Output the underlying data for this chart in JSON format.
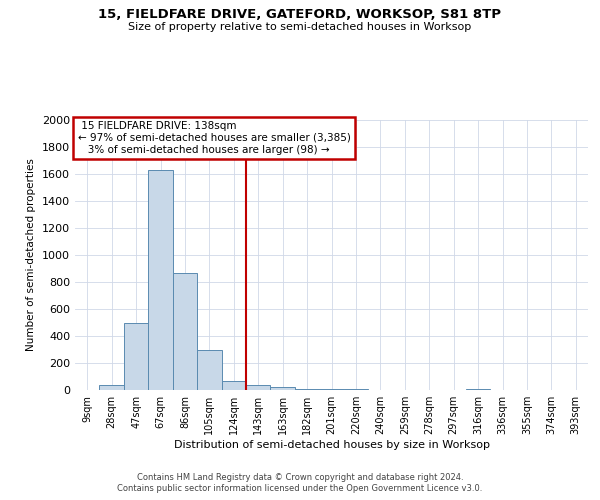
{
  "title": "15, FIELDFARE DRIVE, GATEFORD, WORKSOP, S81 8TP",
  "subtitle": "Size of property relative to semi-detached houses in Worksop",
  "xlabel": "Distribution of semi-detached houses by size in Worksop",
  "ylabel": "Number of semi-detached properties",
  "footer_lines": [
    "Contains HM Land Registry data © Crown copyright and database right 2024.",
    "Contains public sector information licensed under the Open Government Licence v3.0."
  ],
  "bin_labels": [
    "9sqm",
    "28sqm",
    "47sqm",
    "67sqm",
    "86sqm",
    "105sqm",
    "124sqm",
    "143sqm",
    "163sqm",
    "182sqm",
    "201sqm",
    "220sqm",
    "240sqm",
    "259sqm",
    "278sqm",
    "297sqm",
    "316sqm",
    "336sqm",
    "355sqm",
    "374sqm",
    "393sqm"
  ],
  "bin_values": [
    0,
    35,
    500,
    1630,
    870,
    300,
    65,
    40,
    20,
    10,
    5,
    5,
    3,
    2,
    0,
    0,
    10,
    0,
    0,
    0,
    0
  ],
  "bar_color": "#c8d8e8",
  "bar_edge_color": "#5a8ab0",
  "property_label": "15 FIELDFARE DRIVE: 138sqm",
  "pct_smaller": 97,
  "n_smaller": 3385,
  "pct_larger": 3,
  "n_larger": 98,
  "vline_color": "#c00000",
  "annotation_box_color": "#c00000",
  "ylim": [
    0,
    2000
  ],
  "yticks": [
    0,
    200,
    400,
    600,
    800,
    1000,
    1200,
    1400,
    1600,
    1800,
    2000
  ],
  "background_color": "#ffffff",
  "grid_color": "#d0d8e8"
}
